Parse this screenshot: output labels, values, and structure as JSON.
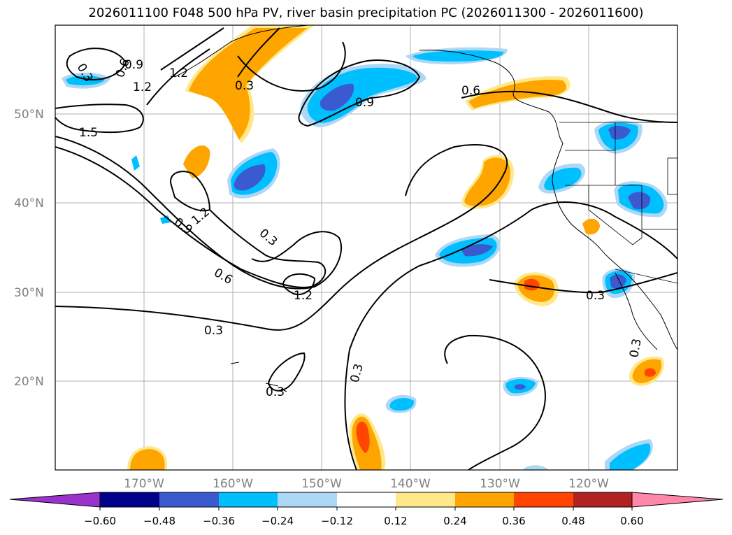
{
  "title": "2026011100 F048 500 hPa PV, river basin precipitation PC (2026011300 - 2026011600)",
  "map": {
    "lat_labels": [
      {
        "value": 50,
        "text": "50°N"
      },
      {
        "value": 40,
        "text": "40°N"
      },
      {
        "value": 30,
        "text": "30°N"
      },
      {
        "value": 20,
        "text": "20°N"
      }
    ],
    "lon_labels": [
      {
        "value": -170,
        "text": "170°W"
      },
      {
        "value": -160,
        "text": "160°W"
      },
      {
        "value": -150,
        "text": "150°W"
      },
      {
        "value": -140,
        "text": "140°W"
      },
      {
        "value": -130,
        "text": "130°W"
      },
      {
        "value": -120,
        "text": "120°W"
      }
    ],
    "extent": {
      "lon_min": -180,
      "lon_max": -110,
      "lat_min": 10,
      "lat_max": 60
    },
    "contour_labels": [
      "0.3",
      "0.6",
      "0.9",
      "1.2",
      "1.5"
    ],
    "colorbar": {
      "levels": [
        "−0.60",
        "−0.48",
        "−0.36",
        "−0.24",
        "−0.12",
        "0.12",
        "0.24",
        "0.36",
        "0.48",
        "0.60"
      ],
      "colors": [
        "#9933cc",
        "#00008b",
        "#3a5bd0",
        "#00bfff",
        "#add8f5",
        "#ffffff",
        "#ffe88a",
        "#ffa500",
        "#ff4500",
        "#b22222",
        "#ff88aa"
      ]
    }
  }
}
